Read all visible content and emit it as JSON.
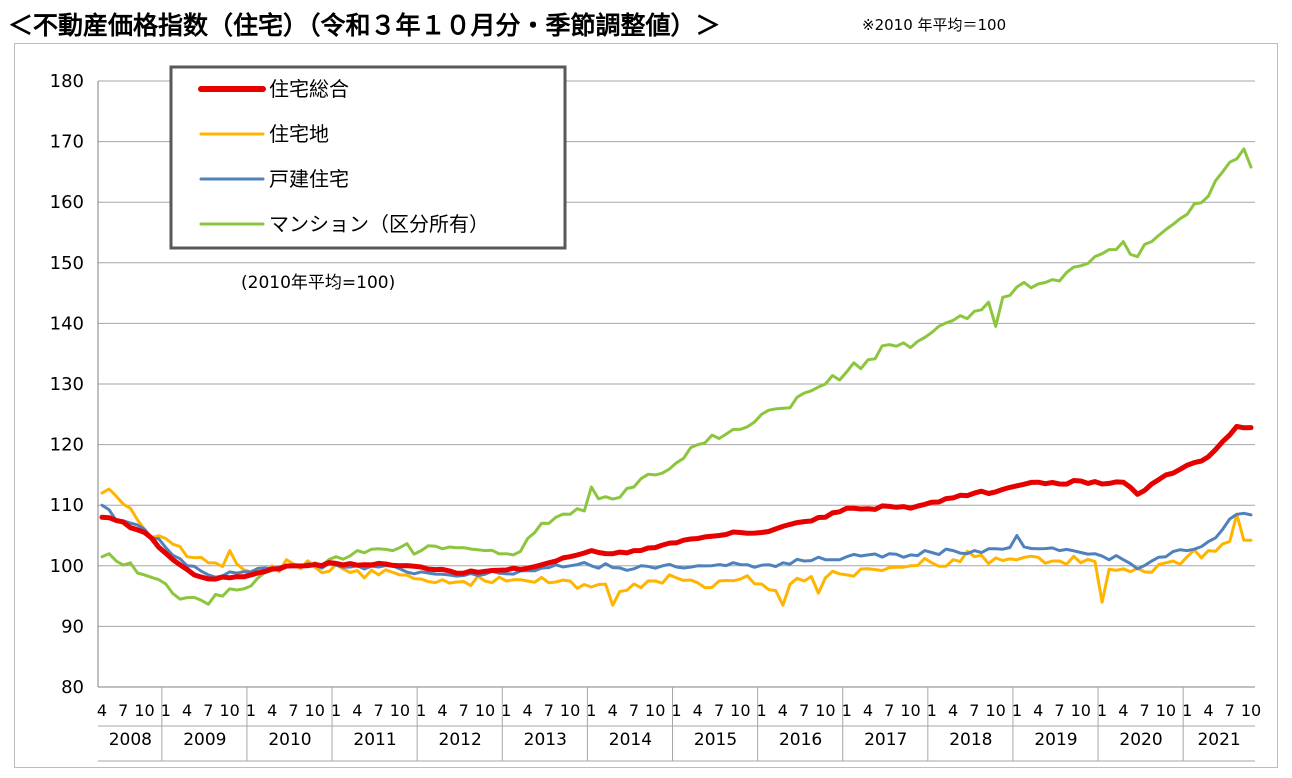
{
  "header": {
    "title": "＜不動産価格指数（住宅）（令和３年１０月分・季節調整値）＞",
    "note": "※2010 年平均＝100"
  },
  "chart_data": {
    "type": "line",
    "subtitle": "(2010年平均=100)",
    "ylim": [
      80,
      180
    ],
    "yticks": [
      80,
      90,
      100,
      110,
      120,
      130,
      140,
      150,
      160,
      170,
      180
    ],
    "grid": true,
    "legend_position": "top-left",
    "x_start": "2008-04",
    "x_end": "2021-10",
    "month_tick_labels": [
      "1",
      "4",
      "7",
      "10"
    ],
    "years": [
      "2008",
      "2009",
      "2010",
      "2011",
      "2012",
      "2013",
      "2014",
      "2015",
      "2016",
      "2017",
      "2018",
      "2019",
      "2020",
      "2021"
    ],
    "series": [
      {
        "name": "住宅総合",
        "color": "#e60000",
        "width": 5,
        "knots": [
          [
            "2008-04",
            108
          ],
          [
            "2008-06",
            107.5
          ],
          [
            "2008-10",
            105.5
          ],
          [
            "2009-02",
            101
          ],
          [
            "2009-05",
            98.5
          ],
          [
            "2009-08",
            97.8
          ],
          [
            "2009-11",
            98.2
          ],
          [
            "2010-01",
            98.5
          ],
          [
            "2010-04",
            99.5
          ],
          [
            "2010-07",
            100
          ],
          [
            "2010-10",
            100.2
          ],
          [
            "2011-01",
            100.4
          ],
          [
            "2011-04",
            100.1
          ],
          [
            "2011-07",
            100.4
          ],
          [
            "2011-10",
            100
          ],
          [
            "2012-01",
            99.8
          ],
          [
            "2012-04",
            99.4
          ],
          [
            "2012-07",
            98.8
          ],
          [
            "2012-10",
            99.1
          ],
          [
            "2013-01",
            99.3
          ],
          [
            "2013-04",
            99.6
          ],
          [
            "2013-07",
            100.5
          ],
          [
            "2013-10",
            101.5
          ],
          [
            "2014-01",
            102.5
          ],
          [
            "2014-04",
            102
          ],
          [
            "2014-07",
            102.5
          ],
          [
            "2014-10",
            103
          ],
          [
            "2015-01",
            103.8
          ],
          [
            "2015-04",
            104.5
          ],
          [
            "2015-07",
            105
          ],
          [
            "2015-10",
            105.5
          ],
          [
            "2016-01",
            105.5
          ],
          [
            "2016-04",
            106.5
          ],
          [
            "2016-07",
            107.3
          ],
          [
            "2016-10",
            108
          ],
          [
            "2017-01",
            109.5
          ],
          [
            "2017-04",
            109.4
          ],
          [
            "2017-07",
            109.8
          ],
          [
            "2017-10",
            109.5
          ],
          [
            "2018-01",
            110.5
          ],
          [
            "2018-04",
            111.2
          ],
          [
            "2018-07",
            112
          ],
          [
            "2018-10",
            112.2
          ],
          [
            "2019-01",
            113.2
          ],
          [
            "2019-04",
            113.8
          ],
          [
            "2019-07",
            113.5
          ],
          [
            "2019-10",
            114
          ],
          [
            "2020-01",
            113.5
          ],
          [
            "2020-04",
            113.8
          ],
          [
            "2020-06",
            111.8
          ],
          [
            "2020-08",
            113.5
          ],
          [
            "2020-10",
            115
          ],
          [
            "2021-01",
            116.6
          ],
          [
            "2021-04",
            118
          ],
          [
            "2021-06",
            120.5
          ],
          [
            "2021-08",
            123
          ],
          [
            "2021-10",
            122.8
          ]
        ],
        "noise": 0.25
      },
      {
        "name": "住宅地",
        "color": "#ffb400",
        "width": 3,
        "knots": [
          [
            "2008-04",
            112
          ],
          [
            "2008-06",
            111.5
          ],
          [
            "2008-08",
            109.5
          ],
          [
            "2008-10",
            106
          ],
          [
            "2009-01",
            104.5
          ],
          [
            "2009-04",
            101.5
          ],
          [
            "2009-07",
            100.5
          ],
          [
            "2009-10",
            101
          ],
          [
            "2010-01",
            99
          ],
          [
            "2010-04",
            100
          ],
          [
            "2010-07",
            100.3
          ],
          [
            "2010-10",
            99.8
          ],
          [
            "2011-01",
            100.2
          ],
          [
            "2011-04",
            99.2
          ],
          [
            "2011-07",
            98.5
          ],
          [
            "2011-10",
            98.5
          ],
          [
            "2012-01",
            97.8
          ],
          [
            "2012-04",
            97.7
          ],
          [
            "2012-07",
            97.4
          ],
          [
            "2012-10",
            97.5
          ],
          [
            "2013-01",
            97.5
          ],
          [
            "2013-04",
            97.5
          ],
          [
            "2013-07",
            97.2
          ],
          [
            "2013-10",
            97.5
          ],
          [
            "2014-01",
            96.5
          ],
          [
            "2014-04",
            96.5
          ],
          [
            "2014-07",
            97
          ],
          [
            "2014-10",
            97.5
          ],
          [
            "2015-01",
            98
          ],
          [
            "2015-04",
            97.2
          ],
          [
            "2015-07",
            97.5
          ],
          [
            "2015-10",
            97.8
          ],
          [
            "2016-01",
            97
          ],
          [
            "2016-04",
            96
          ],
          [
            "2016-07",
            97.5
          ],
          [
            "2016-10",
            98
          ],
          [
            "2017-01",
            98.5
          ],
          [
            "2017-04",
            99.5
          ],
          [
            "2017-07",
            99.7
          ],
          [
            "2017-10",
            100
          ],
          [
            "2018-01",
            100.5
          ],
          [
            "2018-04",
            101
          ],
          [
            "2018-07",
            101.5
          ],
          [
            "2018-10",
            101.3
          ],
          [
            "2019-01",
            101
          ],
          [
            "2019-04",
            101.4
          ],
          [
            "2019-07",
            100.8
          ],
          [
            "2019-10",
            100.5
          ],
          [
            "2020-01",
            100
          ],
          [
            "2020-04",
            99.5
          ],
          [
            "2020-07",
            99
          ],
          [
            "2020-10",
            100.5
          ],
          [
            "2021-01",
            101.5
          ],
          [
            "2021-04",
            102.5
          ],
          [
            "2021-07",
            104
          ],
          [
            "2021-08",
            108.5
          ],
          [
            "2021-09",
            104.2
          ],
          [
            "2021-10",
            104.2
          ]
        ],
        "noise": 1.1,
        "spikes": [
          [
            "2009-10",
            102.5
          ],
          [
            "2014-04",
            93.5
          ],
          [
            "2016-04",
            93.5
          ],
          [
            "2016-09",
            95.5
          ],
          [
            "2020-01",
            94
          ]
        ]
      },
      {
        "name": "戸建住宅",
        "color": "#4f81bd",
        "width": 3,
        "knots": [
          [
            "2008-04",
            110
          ],
          [
            "2008-06",
            107.5
          ],
          [
            "2008-10",
            106
          ],
          [
            "2009-01",
            103
          ],
          [
            "2009-04",
            100
          ],
          [
            "2009-07",
            98.5
          ],
          [
            "2009-10",
            99
          ],
          [
            "2010-01",
            99
          ],
          [
            "2010-04",
            99.5
          ],
          [
            "2010-07",
            100
          ],
          [
            "2010-10",
            100.1
          ],
          [
            "2011-01",
            100.1
          ],
          [
            "2011-04",
            100
          ],
          [
            "2011-07",
            99.8
          ],
          [
            "2011-10",
            99.5
          ],
          [
            "2012-01",
            99
          ],
          [
            "2012-04",
            98.6
          ],
          [
            "2012-07",
            98.4
          ],
          [
            "2012-10",
            98.6
          ],
          [
            "2013-01",
            98.7
          ],
          [
            "2013-04",
            99.2
          ],
          [
            "2013-07",
            99.7
          ],
          [
            "2013-10",
            100
          ],
          [
            "2014-01",
            100
          ],
          [
            "2014-04",
            99.7
          ],
          [
            "2014-07",
            99.5
          ],
          [
            "2014-10",
            99.6
          ],
          [
            "2015-01",
            99.8
          ],
          [
            "2015-04",
            100
          ],
          [
            "2015-07",
            100.2
          ],
          [
            "2015-10",
            100.2
          ],
          [
            "2016-01",
            100.1
          ],
          [
            "2016-04",
            100.5
          ],
          [
            "2016-07",
            100.8
          ],
          [
            "2016-10",
            101
          ],
          [
            "2017-01",
            101.5
          ],
          [
            "2017-04",
            101.8
          ],
          [
            "2017-07",
            102
          ],
          [
            "2017-10",
            101.8
          ],
          [
            "2018-01",
            102.2
          ],
          [
            "2018-04",
            102.5
          ],
          [
            "2018-07",
            102.5
          ],
          [
            "2018-10",
            102.8
          ],
          [
            "2019-01",
            103
          ],
          [
            "2019-04",
            102.8
          ],
          [
            "2019-07",
            102.5
          ],
          [
            "2019-10",
            102.2
          ],
          [
            "2020-01",
            101.6
          ],
          [
            "2020-04",
            101
          ],
          [
            "2020-06",
            99.5
          ],
          [
            "2020-08",
            100.8
          ],
          [
            "2020-10",
            101.5
          ],
          [
            "2021-01",
            102.5
          ],
          [
            "2021-04",
            104
          ],
          [
            "2021-06",
            106
          ],
          [
            "2021-08",
            108.5
          ],
          [
            "2021-10",
            108.4
          ]
        ],
        "noise": 0.55,
        "spikes": [
          [
            "2019-01",
            105
          ]
        ]
      },
      {
        "name": "マンション（区分所有）",
        "color": "#8cc63f",
        "width": 3,
        "knots": [
          [
            "2008-04",
            101.5
          ],
          [
            "2008-06",
            100.8
          ],
          [
            "2008-08",
            100.5
          ],
          [
            "2008-10",
            98.5
          ],
          [
            "2009-01",
            97
          ],
          [
            "2009-03",
            94.5
          ],
          [
            "2009-06",
            94.3
          ],
          [
            "2009-09",
            95
          ],
          [
            "2009-12",
            96.2
          ],
          [
            "2010-02",
            98
          ],
          [
            "2010-04",
            99.2
          ],
          [
            "2010-07",
            100
          ],
          [
            "2010-10",
            100.5
          ],
          [
            "2011-01",
            101.5
          ],
          [
            "2011-04",
            102.5
          ],
          [
            "2011-07",
            102.8
          ],
          [
            "2011-10",
            103
          ],
          [
            "2012-01",
            102.5
          ],
          [
            "2012-04",
            102.8
          ],
          [
            "2012-07",
            103
          ],
          [
            "2012-10",
            102.5
          ],
          [
            "2013-01",
            102
          ],
          [
            "2013-02",
            101.8
          ],
          [
            "2013-04",
            104.5
          ],
          [
            "2013-07",
            107
          ],
          [
            "2013-10",
            108.5
          ],
          [
            "2014-01",
            110.5
          ],
          [
            "2014-04",
            111
          ],
          [
            "2014-07",
            113
          ],
          [
            "2014-10",
            115
          ],
          [
            "2015-01",
            117
          ],
          [
            "2015-04",
            120
          ],
          [
            "2015-07",
            121
          ],
          [
            "2015-10",
            122.5
          ],
          [
            "2016-01",
            125
          ],
          [
            "2016-04",
            126
          ],
          [
            "2016-07",
            128.5
          ],
          [
            "2016-10",
            130
          ],
          [
            "2017-01",
            132
          ],
          [
            "2017-04",
            134
          ],
          [
            "2017-07",
            136.5
          ],
          [
            "2017-10",
            136
          ],
          [
            "2018-01",
            138.5
          ],
          [
            "2018-04",
            140.5
          ],
          [
            "2018-07",
            142
          ],
          [
            "2018-10",
            143.5
          ],
          [
            "2019-01",
            146
          ],
          [
            "2019-04",
            146.5
          ],
          [
            "2019-07",
            147
          ],
          [
            "2019-10",
            149.5
          ],
          [
            "2020-01",
            151.5
          ],
          [
            "2020-04",
            153.5
          ],
          [
            "2020-06",
            151
          ],
          [
            "2020-08",
            153.5
          ],
          [
            "2020-10",
            155.5
          ],
          [
            "2021-01",
            158
          ],
          [
            "2021-04",
            161
          ],
          [
            "2021-06",
            165
          ],
          [
            "2021-09",
            168.8
          ],
          [
            "2021-10",
            165.8
          ]
        ],
        "noise": 0.9,
        "spikes": [
          [
            "2014-01",
            113
          ],
          [
            "2018-10",
            139.5
          ],
          [
            "2018-09",
            143.5
          ]
        ]
      }
    ]
  }
}
